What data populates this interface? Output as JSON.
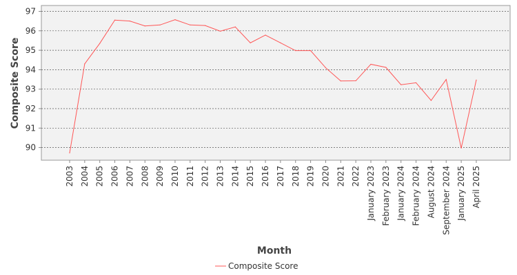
{
  "chart_data": {
    "type": "line",
    "title": "",
    "xlabel": "Month",
    "ylabel": "Composite Score",
    "categories": [
      "2003",
      "2004",
      "2005",
      "2006",
      "2007",
      "2008",
      "2009",
      "2010",
      "2011",
      "2012",
      "2013",
      "2014",
      "2015",
      "2016",
      "2017",
      "2018",
      "2019",
      "2020",
      "2021",
      "2022",
      "January 2023",
      "February 2023",
      "January 2024",
      "February 2024",
      "August 2024",
      "September 2024",
      "January 2025",
      "April 2025"
    ],
    "series": [
      {
        "name": "Composite Score",
        "color": "#ff5555",
        "values": [
          89.72,
          94.3,
          95.35,
          96.55,
          96.5,
          96.25,
          96.3,
          96.57,
          96.3,
          96.27,
          95.98,
          96.2,
          95.38,
          95.78,
          95.38,
          94.98,
          94.98,
          94.1,
          93.42,
          93.43,
          94.28,
          94.12,
          93.23,
          93.33,
          92.42,
          93.5,
          89.97,
          93.47
        ]
      }
    ],
    "ylim": [
      89.35,
      97.3
    ],
    "yticks": [
      90,
      91,
      92,
      93,
      94,
      95,
      96,
      97
    ],
    "grid": true,
    "legend": "bottom-center"
  }
}
